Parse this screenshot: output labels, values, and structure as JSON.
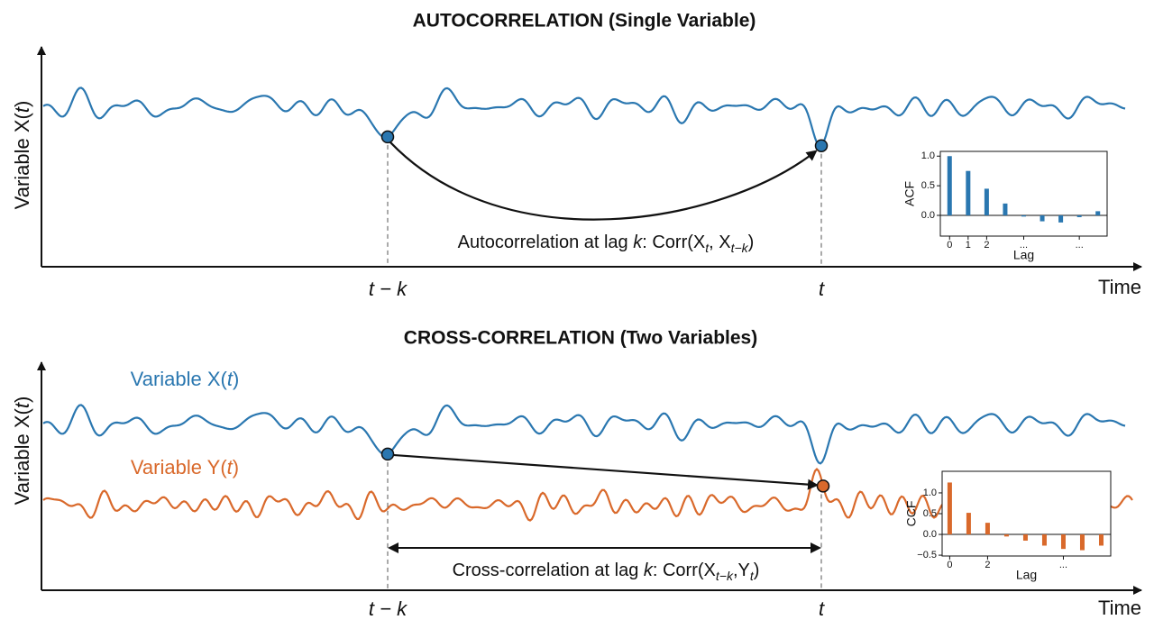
{
  "panels": [
    {
      "title": "AUTOCORRELATION (Single Variable)",
      "y_label": [
        "Variable X(",
        "t",
        ")"
      ],
      "x_label": "Time",
      "tick_left": "t − k",
      "tick_right": "t",
      "annotation": [
        "Autocorrelation at lag ",
        "k",
        ": Corr(X",
        "t",
        ", X",
        "t−k",
        ")"
      ],
      "inset": {
        "type": "bar",
        "y_label": "ACF",
        "x_label": "Lag",
        "color": "#2a77b0",
        "values": [
          1.0,
          0.75,
          0.45,
          0.2,
          -0.02,
          -0.1,
          -0.12,
          -0.03,
          0.07
        ],
        "xlim": [
          -0.5,
          8.5
        ],
        "ylim": [
          -0.35,
          1.08
        ],
        "yticks": [
          {
            "value": 1,
            "label": "1.0"
          },
          0.5,
          {
            "value": 0,
            "label": "0.0"
          }
        ],
        "xticks": [
          0,
          1,
          2,
          {
            "value": 4,
            "label": "..."
          },
          {
            "value": 7,
            "label": "..."
          }
        ]
      }
    },
    {
      "title": "CROSS-CORRELATION (Two Variables)",
      "y_label": [
        "Variable X(",
        "t",
        ")"
      ],
      "x_label": "Time",
      "tick_left": "t − k",
      "tick_right": "t",
      "series_x": [
        "Variable X(",
        "t",
        ")"
      ],
      "series_y": [
        "Variable Y(",
        "t",
        ")"
      ],
      "annotation": [
        "Cross-correlation at lag ",
        "k",
        ": Corr(X",
        "t−k",
        ",Y",
        "t",
        ")"
      ],
      "inset": {
        "type": "bar",
        "y_label": "CCF",
        "x_label": "Lag",
        "color": "#d9692b",
        "values": [
          1.25,
          0.52,
          0.28,
          -0.05,
          -0.15,
          -0.27,
          -0.35,
          -0.38,
          -0.27
        ],
        "xlim": [
          -0.4,
          8.5
        ],
        "ylim": [
          -0.52,
          1.52
        ],
        "yticks": [
          {
            "value": 1,
            "label": "1.0"
          },
          0.5,
          {
            "value": 0,
            "label": "0.0"
          },
          {
            "value": -0.5,
            "label": "−0.5"
          }
        ],
        "xticks": [
          0,
          2,
          {
            "value": 6,
            "label": "..."
          }
        ]
      }
    }
  ]
}
